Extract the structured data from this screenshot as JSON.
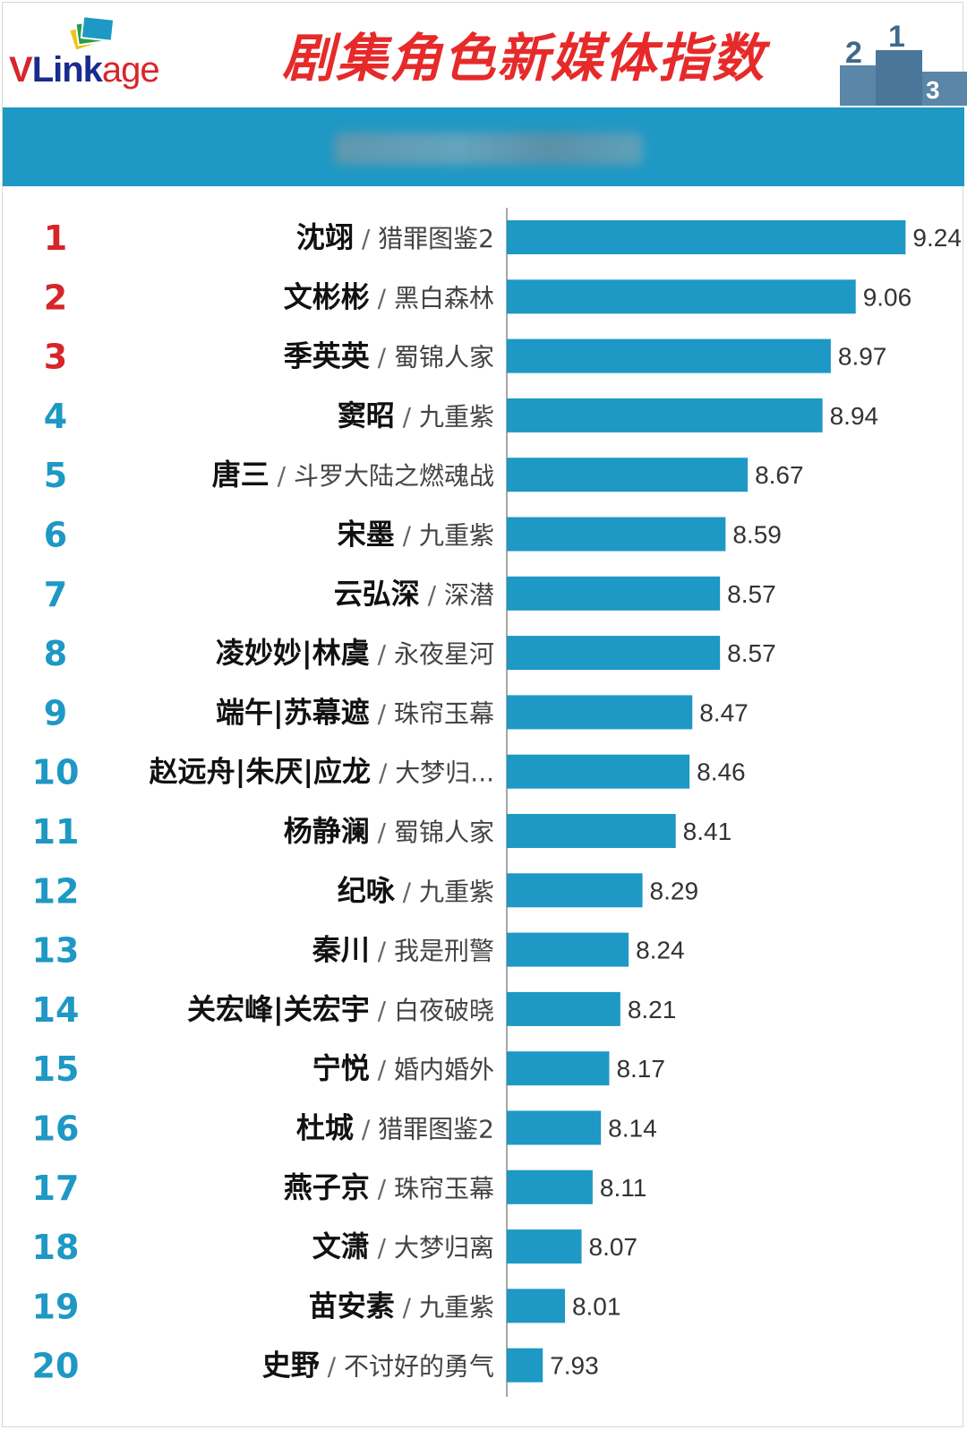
{
  "header": {
    "logo_text": "VLinkage",
    "title": "剧集角色新媒体指数"
  },
  "colors": {
    "bar": "#1e98c4",
    "banner": "#1e98c4",
    "rank_top3": "#d7262b",
    "rank_rest": "#1e98c4",
    "title": "#e62a2a"
  },
  "chart_data": {
    "type": "bar",
    "orientation": "horizontal",
    "title": "剧集角色新媒体指数",
    "xlabel": "",
    "ylabel": "",
    "xlim": [
      7.8,
      9.3
    ],
    "grid": false,
    "legend": "none",
    "categories": [
      {
        "rank": "1",
        "character": "沈翊",
        "show": "猎罪图鉴2"
      },
      {
        "rank": "2",
        "character": "文彬彬",
        "show": "黑白森林"
      },
      {
        "rank": "3",
        "character": "季英英",
        "show": "蜀锦人家"
      },
      {
        "rank": "4",
        "character": "窦昭",
        "show": "九重紫"
      },
      {
        "rank": "5",
        "character": "唐三",
        "show": "斗罗大陆之燃魂战"
      },
      {
        "rank": "6",
        "character": "宋墨",
        "show": "九重紫"
      },
      {
        "rank": "7",
        "character": "云弘深",
        "show": "深潜"
      },
      {
        "rank": "8",
        "character": "凌妙妙|林虞",
        "show": "永夜星河"
      },
      {
        "rank": "9",
        "character": "端午|苏幕遮",
        "show": "珠帘玉幕"
      },
      {
        "rank": "10",
        "character": "赵远舟|朱厌|应龙",
        "show": "大梦归..."
      },
      {
        "rank": "11",
        "character": "杨静澜",
        "show": "蜀锦人家"
      },
      {
        "rank": "12",
        "character": "纪咏",
        "show": "九重紫"
      },
      {
        "rank": "13",
        "character": "秦川",
        "show": "我是刑警"
      },
      {
        "rank": "14",
        "character": "关宏峰|关宏宇",
        "show": "白夜破晓"
      },
      {
        "rank": "15",
        "character": "宁悦",
        "show": "婚内婚外"
      },
      {
        "rank": "16",
        "character": "杜城",
        "show": "猎罪图鉴2"
      },
      {
        "rank": "17",
        "character": "燕子京",
        "show": "珠帘玉幕"
      },
      {
        "rank": "18",
        "character": "文潇",
        "show": "大梦归离"
      },
      {
        "rank": "19",
        "character": "苗安素",
        "show": "九重紫"
      },
      {
        "rank": "20",
        "character": "史野",
        "show": "不讨好的勇气"
      }
    ],
    "values": [
      9.24,
      9.06,
      8.97,
      8.94,
      8.67,
      8.59,
      8.57,
      8.57,
      8.47,
      8.46,
      8.41,
      8.29,
      8.24,
      8.21,
      8.17,
      8.14,
      8.11,
      8.07,
      8.01,
      7.93
    ],
    "value_labels": [
      "9.24",
      "9.06",
      "8.97",
      "8.94",
      "8.67",
      "8.59",
      "8.57",
      "8.57",
      "8.47",
      "8.46",
      "8.41",
      "8.29",
      "8.24",
      "8.21",
      "8.17",
      "8.14",
      "8.11",
      "8.07",
      "8.01",
      "7.93"
    ]
  }
}
